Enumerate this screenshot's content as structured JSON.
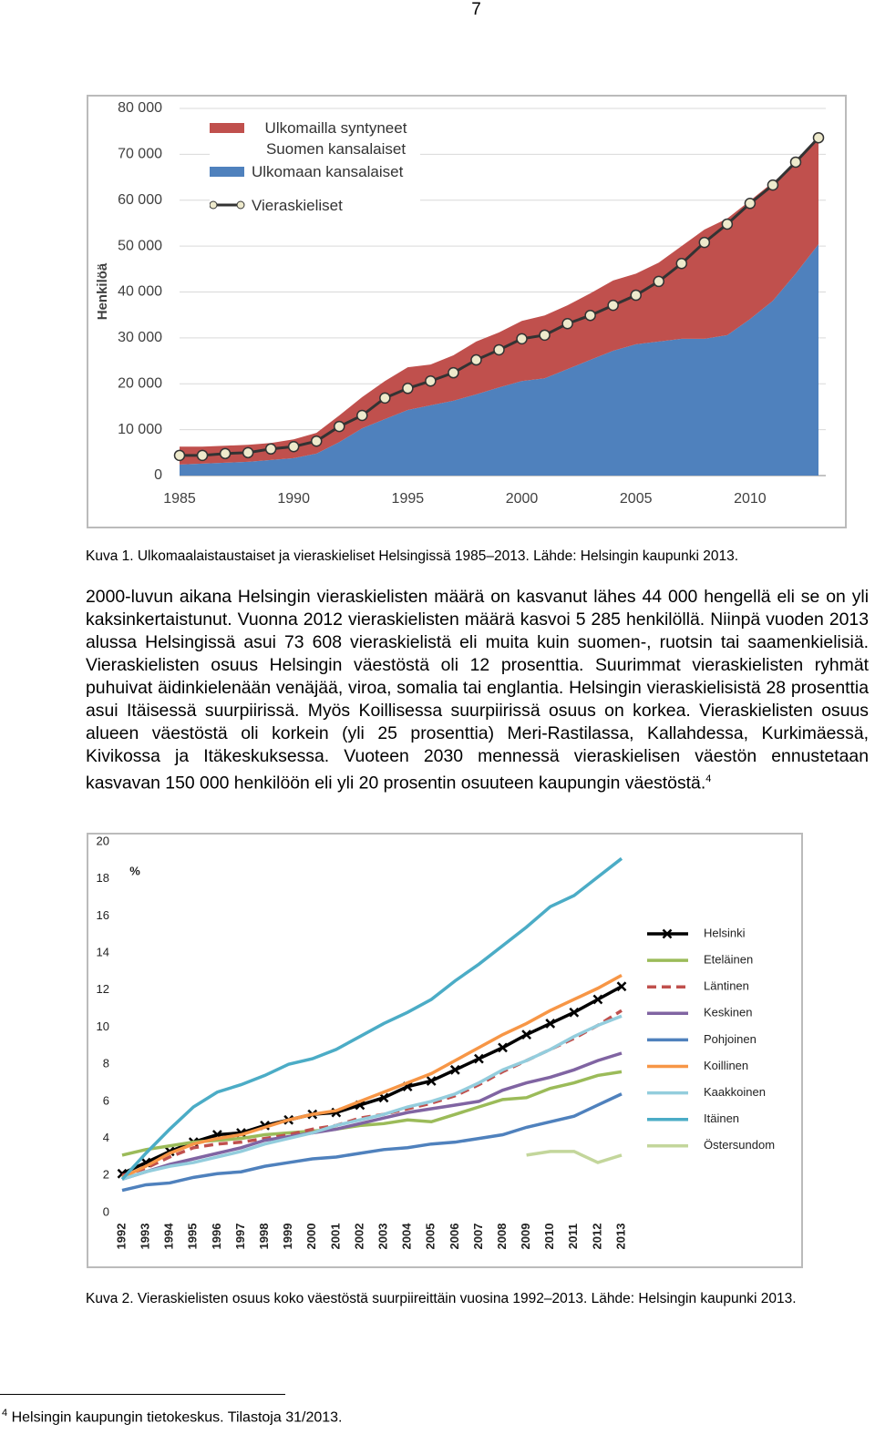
{
  "page_number": "7",
  "chart_data": [
    {
      "type": "area",
      "y_label": "Henkilöä",
      "x": [
        1985,
        1986,
        1987,
        1988,
        1989,
        1990,
        1991,
        1992,
        1993,
        1994,
        1995,
        1996,
        1997,
        1998,
        1999,
        2000,
        2001,
        2002,
        2003,
        2004,
        2005,
        2006,
        2007,
        2008,
        2009,
        2010,
        2011,
        2012,
        2013
      ],
      "xlim": [
        1985,
        2013
      ],
      "xticks": [
        1985,
        1990,
        1995,
        2000,
        2005,
        2010
      ],
      "ylim": [
        0,
        80000
      ],
      "yticks": [
        0,
        {
          "value": 10000,
          "label": "10 000"
        },
        {
          "value": 20000,
          "label": "20 000"
        },
        {
          "value": 30000,
          "label": "30 000"
        },
        {
          "value": 40000,
          "label": "40 000"
        },
        {
          "value": 50000,
          "label": "50 000"
        },
        {
          "value": 60000,
          "label": "60 000"
        },
        {
          "value": 70000,
          "label": "70 000"
        },
        {
          "value": 80000,
          "label": "80 000"
        }
      ],
      "grid": true,
      "series": [
        {
          "name": "Ulkomailla syntyneet Suomen kansalaiset",
          "type": "area",
          "color": "#c0504d",
          "values": [
            3900,
            3700,
            3700,
            3700,
            3700,
            4100,
            4500,
            5800,
            6800,
            8300,
            9300,
            8900,
            9900,
            11500,
            12000,
            13100,
            13700,
            13900,
            14500,
            15300,
            15400,
            17200,
            20200,
            23800,
            25400,
            25800,
            25800,
            23900,
            23800
          ]
        },
        {
          "name": "Ulkomaan kansalaiset",
          "type": "area",
          "color": "#4f81bd",
          "values": [
            2400,
            2600,
            2800,
            3000,
            3400,
            3800,
            4800,
            7300,
            10300,
            12300,
            14300,
            15300,
            16300,
            17700,
            19200,
            20600,
            21200,
            23200,
            25200,
            27200,
            28600,
            29200,
            29800,
            29800,
            30600,
            34100,
            38100,
            44000,
            50400
          ]
        },
        {
          "name": "Vieraskieliset",
          "type": "line",
          "color": "#333333",
          "marker_color": "#eeeacc",
          "values": [
            4400,
            4400,
            4800,
            5000,
            5800,
            6300,
            7500,
            10700,
            13100,
            16900,
            19000,
            20600,
            22400,
            25200,
            27400,
            29800,
            30600,
            33100,
            34900,
            37100,
            39300,
            42300,
            46200,
            50800,
            54800,
            59300,
            63300,
            68300,
            73608
          ]
        }
      ]
    },
    {
      "type": "line",
      "y_label": "%",
      "categories": [
        "1992",
        "1993",
        "1994",
        "1995",
        "1996",
        "1997",
        "1998",
        "1999",
        "2000",
        "2001",
        "2002",
        "2003",
        "2004",
        "2005",
        "2006",
        "2007",
        "2008",
        "2009",
        "2010",
        "2011",
        "2012",
        "2013"
      ],
      "ylim": [
        0,
        20
      ],
      "yticks": [
        0,
        2,
        4,
        6,
        8,
        10,
        12,
        14,
        16,
        18,
        20
      ],
      "grid": false,
      "series": [
        {
          "name": "Helsinki",
          "color": "#000000",
          "marker": "x",
          "values": [
            2.1,
            2.7,
            3.3,
            3.8,
            4.2,
            4.3,
            4.7,
            5.0,
            5.3,
            5.4,
            5.8,
            6.2,
            6.8,
            7.1,
            7.7,
            8.3,
            8.9,
            9.6,
            10.2,
            10.8,
            11.5,
            12.2
          ]
        },
        {
          "name": "Eteläinen",
          "color": "#9bbb59",
          "values": [
            3.1,
            3.4,
            3.6,
            3.8,
            3.9,
            4.0,
            4.2,
            4.3,
            4.4,
            4.5,
            4.7,
            4.8,
            5.0,
            4.9,
            5.3,
            5.7,
            6.1,
            6.2,
            6.7,
            7.0,
            7.4,
            7.6
          ]
        },
        {
          "name": "Läntinen",
          "color": "#c0504d",
          "dash": true,
          "values": [
            2.0,
            2.4,
            3.0,
            3.5,
            3.7,
            3.8,
            4.0,
            4.2,
            4.5,
            4.7,
            5.1,
            5.3,
            5.6,
            5.9,
            6.3,
            6.9,
            7.6,
            8.2,
            8.8,
            9.4,
            10.1,
            10.9
          ]
        },
        {
          "name": "Keskinen",
          "color": "#8064a2",
          "values": [
            1.8,
            2.2,
            2.6,
            2.9,
            3.2,
            3.5,
            3.9,
            4.1,
            4.3,
            4.5,
            4.8,
            5.1,
            5.4,
            5.6,
            5.8,
            6.0,
            6.6,
            7.0,
            7.3,
            7.7,
            8.2,
            8.6
          ]
        },
        {
          "name": "Pohjoinen",
          "color": "#4f81bd",
          "values": [
            1.2,
            1.5,
            1.6,
            1.9,
            2.1,
            2.2,
            2.5,
            2.7,
            2.9,
            3.0,
            3.2,
            3.4,
            3.5,
            3.7,
            3.8,
            4.0,
            4.2,
            4.6,
            4.9,
            5.2,
            5.8,
            6.4
          ]
        },
        {
          "name": "Koillinen",
          "color": "#f79646",
          "values": [
            1.9,
            2.5,
            3.2,
            3.7,
            4.0,
            4.2,
            4.6,
            5.0,
            5.3,
            5.5,
            6.0,
            6.5,
            7.0,
            7.5,
            8.2,
            8.9,
            9.6,
            10.2,
            10.9,
            11.5,
            12.1,
            12.8
          ]
        },
        {
          "name": "Kaakkoinen",
          "color": "#93cddd",
          "values": [
            1.8,
            2.2,
            2.5,
            2.7,
            3.0,
            3.3,
            3.7,
            4.0,
            4.3,
            4.7,
            5.0,
            5.3,
            5.7,
            6.0,
            6.4,
            7.0,
            7.7,
            8.2,
            8.8,
            9.5,
            10.1,
            10.6
          ]
        },
        {
          "name": "Itäinen",
          "color": "#4bacc6",
          "values": [
            1.8,
            3.2,
            4.5,
            5.7,
            6.5,
            6.9,
            7.4,
            8.0,
            8.3,
            8.8,
            9.5,
            10.2,
            10.8,
            11.5,
            12.5,
            13.4,
            14.4,
            15.4,
            16.5,
            17.1,
            18.1,
            19.1
          ]
        },
        {
          "name": "Östersundom",
          "color": "#c3d69b",
          "values": [
            null,
            null,
            null,
            null,
            null,
            null,
            null,
            null,
            null,
            null,
            null,
            null,
            null,
            null,
            null,
            null,
            null,
            3.1,
            3.3,
            3.3,
            2.7,
            3.1
          ]
        }
      ]
    }
  ],
  "caption1": "Kuva 1. Ulkomaalaistaustaiset ja vieraskieliset Helsingissä 1985–2013. Lähde: Helsingin kaupunki 2013.",
  "body": {
    "paragraph": "2000-luvun aikana Helsingin vieraskielisten määrä on kasvanut lähes 44 000 hengellä eli se on yli kaksinkertaistunut. Vuonna 2012 vieraskielisten määrä kasvoi 5 285 henkilöllä. Niinpä vuoden 2013 alussa Helsingissä asui 73 608 vieraskielistä eli muita kuin suomen-, ruotsin tai saamenkielisiä. Vieraskielisten osuus Helsingin väestöstä oli 12 prosenttia. Suurimmat vieraskielisten ryhmät puhuivat äidinkielenään venäjää, viroa, somalia tai englantia. Helsingin vieraskielisistä 28 prosenttia asui Itäisessä suurpiirissä. Myös Koillisessa suurpiirissä osuus on korkea. Vieraskielisten osuus alueen väestöstä oli korkein (yli 25 prosenttia) Meri-Rastilassa, Kallahdessa, Kurkimäessä, Kivikossa ja Itäkeskuksessa. Vuoteen 2030 mennessä vieraskielisen väestön ennustetaan kasvavan 150 000 henkilöön eli yli 20 prosentin osuuteen kaupungin väestöstä.",
    "footnote_ref": "4"
  },
  "caption2": "Kuva 2. Vieraskielisten osuus koko väestöstä suurpiireittäin vuosina 1992–2013. Lähde: Helsingin kaupunki 2013.",
  "footnote": {
    "marker": "4",
    "text": "Helsingin kaupungin tietokeskus. Tilastoja 31/2013."
  }
}
